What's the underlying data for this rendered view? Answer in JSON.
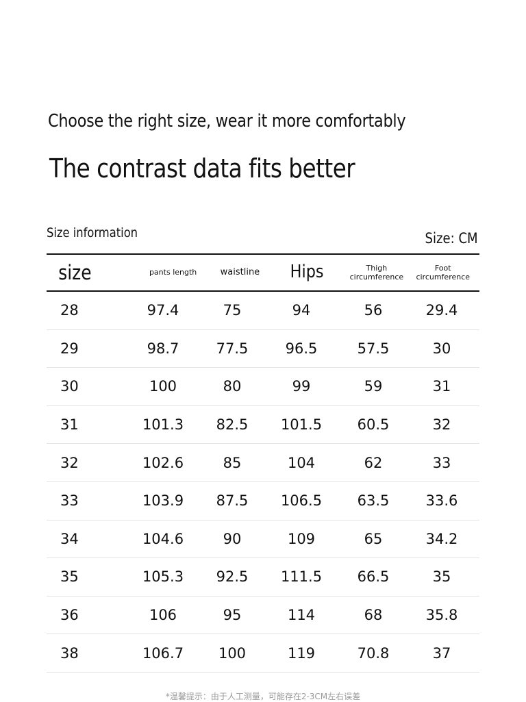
{
  "header": {
    "subtitle": "Choose the right size, wear it more comfortably",
    "title": "The contrast data fits better"
  },
  "table_meta": {
    "info_label": "Size information",
    "unit_label": "Size: CM"
  },
  "columns": [
    {
      "label": "size"
    },
    {
      "label": "pants length"
    },
    {
      "label": "waistline"
    },
    {
      "label": "Hips"
    },
    {
      "label": "Thigh circumference",
      "line1": "Thigh",
      "line2": "circumference"
    },
    {
      "label": "Foot circumference",
      "line1": "Foot",
      "line2": "circumference"
    }
  ],
  "rows": [
    [
      "28",
      "97.4",
      "75",
      "94",
      "56",
      "29.4"
    ],
    [
      "29",
      "98.7",
      "77.5",
      "96.5",
      "57.5",
      "30"
    ],
    [
      "30",
      "100",
      "80",
      "99",
      "59",
      "31"
    ],
    [
      "31",
      "101.3",
      "82.5",
      "101.5",
      "60.5",
      "32"
    ],
    [
      "32",
      "102.6",
      "85",
      "104",
      "62",
      "33"
    ],
    [
      "33",
      "103.9",
      "87.5",
      "106.5",
      "63.5",
      "33.6"
    ],
    [
      "34",
      "104.6",
      "90",
      "109",
      "65",
      "34.2"
    ],
    [
      "35",
      "105.3",
      "92.5",
      "111.5",
      "66.5",
      "35"
    ],
    [
      "36",
      "106",
      "95",
      "114",
      "68",
      "35.8"
    ],
    [
      "38",
      "106.7",
      "100",
      "119",
      "70.8",
      "37"
    ]
  ],
  "footnote": "*温馨提示：由于人工测量，可能存在2-3CM左右误差"
}
